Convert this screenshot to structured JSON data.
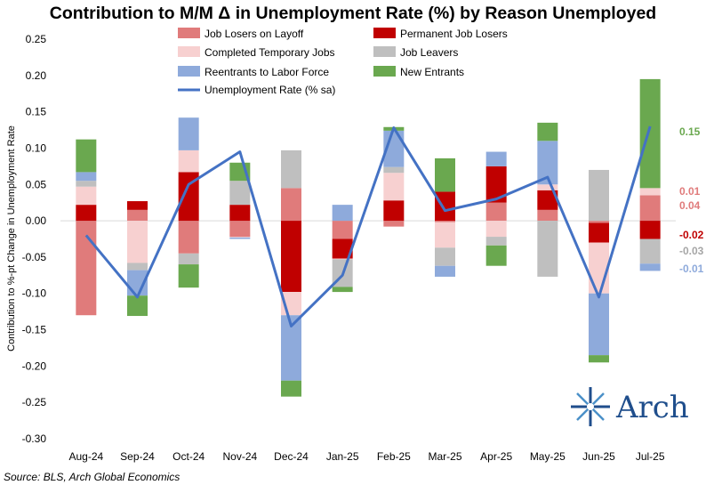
{
  "chart_data": {
    "type": "bar",
    "title": "Contribution to M/M Δ in Unemployment Rate (%) by Reason Unemployed",
    "ylabel": "Contribution to %-pt Change in Unemployment Rate",
    "ylim": [
      -0.3,
      0.25
    ],
    "yticks": [
      "0.25",
      "0.20",
      "0.15",
      "0.10",
      "0.05",
      "0.00",
      "-0.05",
      "-0.10",
      "-0.15",
      "-0.20",
      "-0.25",
      "-0.30"
    ],
    "categories": [
      "Aug-24",
      "Sep-24",
      "Oct-24",
      "Nov-24",
      "Dec-24",
      "Jan-25",
      "Feb-25",
      "Mar-25",
      "Apr-25",
      "May-25",
      "Jun-25",
      "Jul-25"
    ],
    "stacked": true,
    "series": [
      {
        "name": "Job Losers on Layoff",
        "color": "#e07b7b",
        "values": [
          -0.13,
          0.015,
          -0.045,
          -0.022,
          0.045,
          -0.025,
          -0.008,
          -0.002,
          0.025,
          0.015,
          -0.003,
          0.035
        ]
      },
      {
        "name": "Permanent Job Losers",
        "color": "#c00000",
        "values": [
          0.022,
          0.012,
          0.067,
          0.022,
          -0.098,
          -0.027,
          0.028,
          0.04,
          0.05,
          0.027,
          -0.027,
          -0.025
        ]
      },
      {
        "name": "Completed Temporary Jobs",
        "color": "#f7d0d0",
        "values": [
          0.025,
          -0.058,
          0.03,
          -0.001,
          -0.032,
          -0.001,
          0.038,
          -0.035,
          -0.022,
          0.008,
          -0.07,
          0.01
        ]
      },
      {
        "name": "Job Leavers",
        "color": "#bfbfbf",
        "values": [
          0.008,
          -0.01,
          -0.015,
          0.033,
          0.052,
          -0.038,
          0.008,
          -0.025,
          -0.012,
          -0.077,
          0.07,
          -0.034
        ]
      },
      {
        "name": "Reentrants to Labor Force",
        "color": "#8eaadb",
        "values": [
          0.012,
          -0.035,
          0.045,
          -0.002,
          -0.09,
          0.022,
          0.05,
          -0.015,
          0.02,
          0.06,
          -0.085,
          -0.01
        ]
      },
      {
        "name": "New Entrants",
        "color": "#6aa84f",
        "values": [
          0.045,
          -0.028,
          -0.032,
          0.025,
          -0.022,
          -0.007,
          0.005,
          0.046,
          -0.028,
          0.025,
          -0.01,
          0.15
        ]
      }
    ],
    "line": {
      "name": "Unemployment Rate (% sa)",
      "color": "#4472c4",
      "values": [
        -0.02,
        -0.105,
        0.05,
        0.095,
        -0.145,
        -0.075,
        0.128,
        0.014,
        0.03,
        0.06,
        -0.105,
        0.13
      ]
    },
    "end_labels": [
      {
        "text": "0.15",
        "color": "#6aa84f"
      },
      {
        "text": "0.01",
        "color": "#e07b7b"
      },
      {
        "text": "0.04",
        "color": "#e07b7b"
      },
      {
        "text": "-0.02",
        "color": "#c00000"
      },
      {
        "text": "-0.03",
        "color": "#a6a6a6"
      },
      {
        "text": "-0.01",
        "color": "#8eaadb"
      }
    ],
    "legend_position": "top"
  },
  "source": "Source: BLS, Arch Global Economics",
  "logo": {
    "text": "Arch",
    "icon": "arch-star-icon",
    "color": "#1f4e8c"
  }
}
